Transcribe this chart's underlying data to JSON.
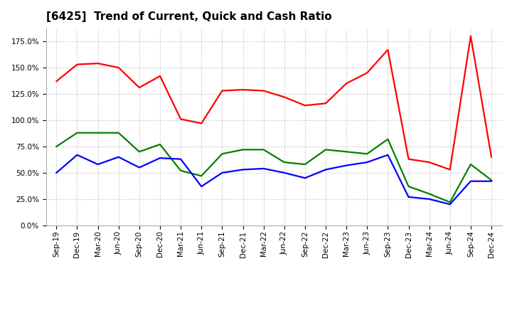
{
  "title": "[6425]  Trend of Current, Quick and Cash Ratio",
  "x_labels": [
    "Sep-19",
    "Dec-19",
    "Mar-20",
    "Jun-20",
    "Sep-20",
    "Dec-20",
    "Mar-21",
    "Jun-21",
    "Sep-21",
    "Dec-21",
    "Mar-22",
    "Jun-22",
    "Sep-22",
    "Dec-22",
    "Mar-23",
    "Jun-23",
    "Sep-23",
    "Dec-23",
    "Mar-24",
    "Jun-24",
    "Sep-24",
    "Dec-24"
  ],
  "current_ratio": [
    137,
    153,
    154,
    150,
    131,
    142,
    101,
    97,
    128,
    129,
    128,
    122,
    114,
    116,
    135,
    145,
    167,
    63,
    60,
    53,
    180,
    65
  ],
  "quick_ratio": [
    75,
    88,
    88,
    88,
    70,
    77,
    52,
    47,
    68,
    72,
    72,
    60,
    58,
    72,
    70,
    68,
    82,
    37,
    30,
    22,
    58,
    43
  ],
  "cash_ratio": [
    50,
    67,
    58,
    65,
    55,
    64,
    63,
    37,
    50,
    53,
    54,
    50,
    45,
    53,
    57,
    60,
    67,
    27,
    25,
    20,
    42,
    42
  ],
  "current_color": "#FF0000",
  "quick_color": "#008000",
  "cash_color": "#0000FF",
  "ylim": [
    0,
    187.5
  ],
  "yticks": [
    0,
    25,
    50,
    75,
    100,
    125,
    150,
    175
  ],
  "background_color": "#FFFFFF",
  "grid_color": "#BBBBBB",
  "line_width": 1.6,
  "title_fontsize": 11,
  "tick_fontsize": 7.5
}
